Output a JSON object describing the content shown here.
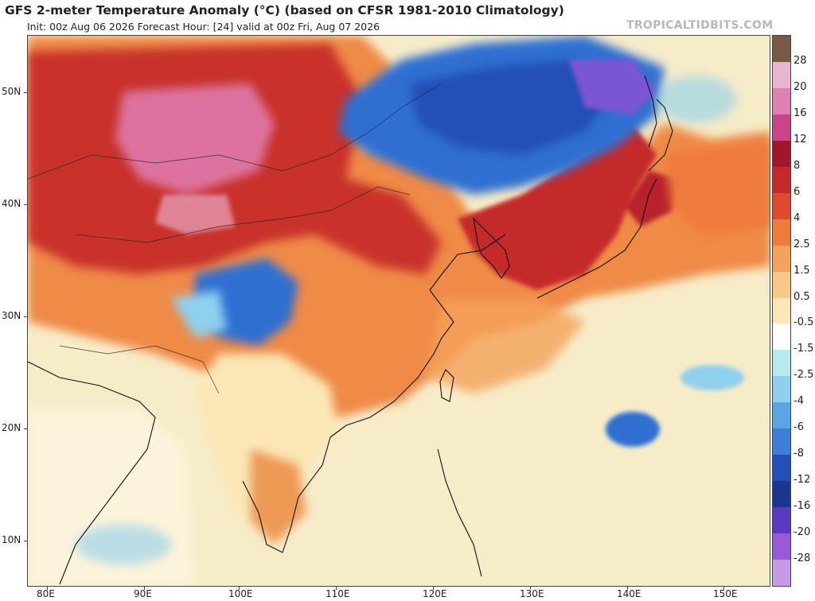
{
  "header": {
    "title": "GFS 2-meter Temperature Anomaly (°C) (based on CFSR 1981-2010 Climatology)",
    "subtitle": "Init: 00z Aug 06 2026   Forecast Hour: [24]   valid at 00z Fri, Aug 07 2026",
    "credit": "TROPICALTIDBITS.COM"
  },
  "axes": {
    "lat_labels": [
      "50N",
      "40N",
      "30N",
      "20N",
      "10N"
    ],
    "lon_labels": [
      "80E",
      "90E",
      "100E",
      "110E",
      "120E",
      "130E",
      "140E",
      "150E"
    ]
  },
  "colorbar": {
    "labels": [
      "28",
      "20",
      "16",
      "12",
      "8",
      "6",
      "4",
      "2.5",
      "1.5",
      "0.5",
      "-0.5",
      "-1.5",
      "-2.5",
      "-4",
      "-6",
      "-8",
      "-12",
      "-16",
      "-20",
      "-28"
    ],
    "colors": [
      "#7a5a46",
      "#e9b6cf",
      "#e07fb4",
      "#c9458a",
      "#a3152a",
      "#c52a2a",
      "#de4a2b",
      "#ee7a3c",
      "#f4a25a",
      "#f7c987",
      "#fbe7b5",
      "#ffffff",
      "#b7e9ee",
      "#8fd0ee",
      "#5aa6e4",
      "#3c7ed8",
      "#2350b8",
      "#1c3590",
      "#5a3ac0",
      "#9a5ad8",
      "#c89ae6"
    ]
  },
  "regions": {
    "warm_west_china": "warm-anomaly",
    "cold_northeast": "cold-anomaly",
    "cold_tibet": "cold-anomaly"
  }
}
